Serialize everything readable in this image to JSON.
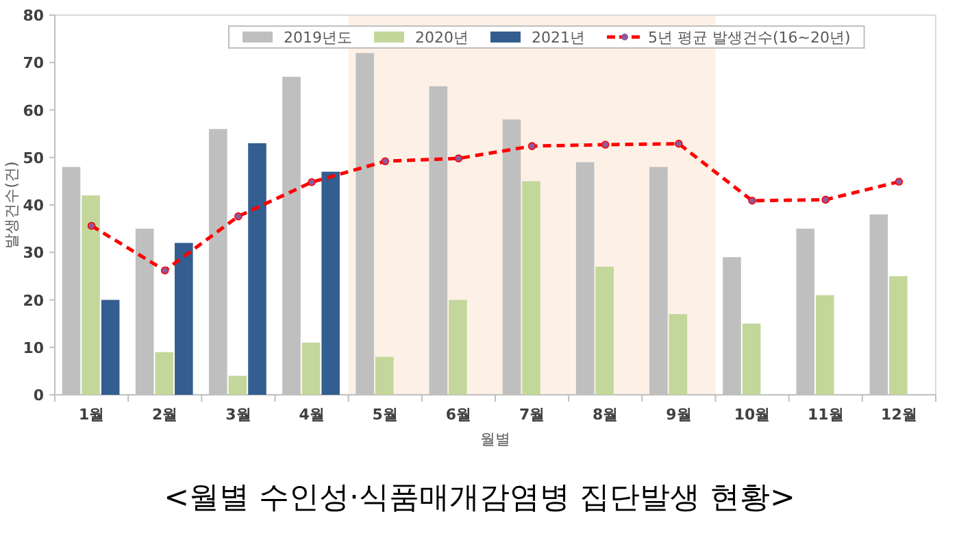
{
  "chart_data": {
    "type": "bar",
    "title": "<월별 수인성·식품매개감염병 집단발생 현황>",
    "xlabel": "월별",
    "ylabel": "발생건수(건)",
    "categories": [
      "1월",
      "2월",
      "3월",
      "4월",
      "5월",
      "6월",
      "7월",
      "8월",
      "9월",
      "10월",
      "11월",
      "12월"
    ],
    "series": [
      {
        "name": "2019년도",
        "color": "#bfbfbf",
        "values": [
          48,
          35,
          56,
          67,
          72,
          65,
          58,
          49,
          48,
          29,
          35,
          38
        ]
      },
      {
        "name": "2020년",
        "color": "#c4d79b",
        "values": [
          42,
          9,
          4,
          11,
          8,
          20,
          45,
          27,
          17,
          15,
          21,
          25
        ]
      },
      {
        "name": "2021년",
        "color": "#335e8f",
        "values": [
          20,
          32,
          53,
          47,
          null,
          null,
          null,
          null,
          null,
          null,
          null,
          null
        ]
      },
      {
        "name": "5년 평균 발생건수(16~20년)",
        "type": "line",
        "color": "#ff0000",
        "marker": "circle",
        "line_style": "dashed",
        "values": [
          35.6,
          26.2,
          37.6,
          44.8,
          49.2,
          49.8,
          52.4,
          52.7,
          52.9,
          40.9,
          41.1,
          44.9
        ]
      }
    ],
    "bands": [
      {
        "axis": "x",
        "from": "5월",
        "to": "9월",
        "color": "#fdf1e7"
      }
    ],
    "ylim": [
      0,
      80
    ],
    "yticks": [
      0,
      10,
      20,
      30,
      40,
      50,
      60,
      70,
      80
    ],
    "grid": false,
    "legend": "top"
  }
}
